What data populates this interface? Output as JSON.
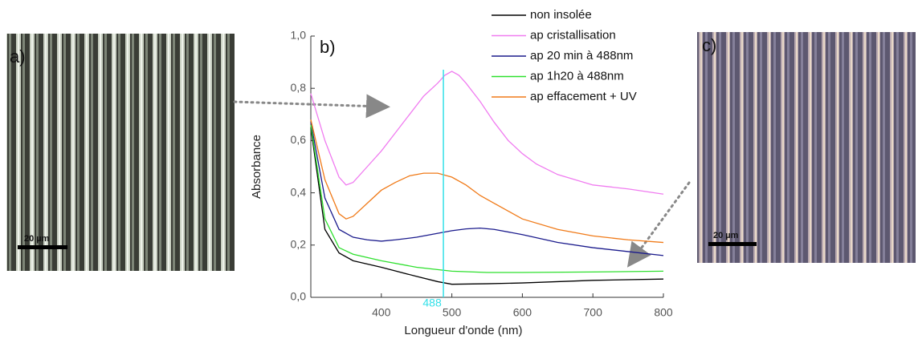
{
  "chart_data": {
    "type": "line",
    "x_label": "Longueur d'onde (nm)",
    "y_label": "Absorbance",
    "xlim": [
      300,
      800
    ],
    "xticks": [
      400,
      500,
      600,
      700,
      800
    ],
    "ylim": [
      0,
      1.0
    ],
    "yticks": [
      {
        "value": 0,
        "label": "0,0"
      },
      {
        "value": 0.2,
        "label": "0,2"
      },
      {
        "value": 0.4,
        "label": "0,4"
      },
      {
        "value": 0.6,
        "label": "0,6"
      },
      {
        "value": 0.8,
        "label": "0,8"
      },
      {
        "value": 1.0,
        "label": "1,0"
      }
    ],
    "vline": 488,
    "vline_color": "#33e0e8",
    "panel_labels": [
      "a)",
      "b)",
      "c)"
    ],
    "scale_label": "20 µm",
    "series": [
      {
        "name": "non insolée",
        "color": "#000000",
        "x": [
          300,
          320,
          340,
          360,
          400,
          450,
          480,
          500,
          550,
          600,
          700,
          800
        ],
        "values": [
          0.65,
          0.26,
          0.17,
          0.14,
          0.115,
          0.08,
          0.06,
          0.05,
          0.052,
          0.055,
          0.065,
          0.07
        ]
      },
      {
        "name": "ap cristallisation",
        "color": "#f07cf0",
        "x": [
          300,
          320,
          340,
          350,
          360,
          380,
          400,
          420,
          440,
          460,
          480,
          490,
          500,
          510,
          520,
          540,
          560,
          580,
          600,
          620,
          650,
          700,
          750,
          800
        ],
        "values": [
          0.78,
          0.6,
          0.46,
          0.43,
          0.44,
          0.5,
          0.56,
          0.63,
          0.7,
          0.77,
          0.82,
          0.85,
          0.865,
          0.85,
          0.82,
          0.75,
          0.67,
          0.6,
          0.55,
          0.51,
          0.47,
          0.43,
          0.415,
          0.395
        ]
      },
      {
        "name": "ap 20 min à 488nm",
        "color": "#1a1a8c",
        "x": [
          300,
          320,
          340,
          360,
          380,
          400,
          420,
          450,
          480,
          500,
          520,
          540,
          560,
          600,
          650,
          700,
          750,
          800
        ],
        "values": [
          0.67,
          0.38,
          0.26,
          0.23,
          0.22,
          0.215,
          0.22,
          0.23,
          0.245,
          0.255,
          0.262,
          0.265,
          0.26,
          0.24,
          0.21,
          0.19,
          0.175,
          0.16
        ]
      },
      {
        "name": "ap 1h20 à 488nm",
        "color": "#2ee02e",
        "x": [
          300,
          320,
          340,
          360,
          400,
          450,
          500,
          550,
          600,
          700,
          800
        ],
        "values": [
          0.66,
          0.3,
          0.19,
          0.165,
          0.14,
          0.115,
          0.1,
          0.095,
          0.095,
          0.097,
          0.1
        ]
      },
      {
        "name": "ap effacement + UV",
        "color": "#f07a18",
        "x": [
          300,
          320,
          340,
          350,
          360,
          380,
          400,
          420,
          440,
          460,
          480,
          500,
          520,
          540,
          560,
          580,
          600,
          650,
          700,
          750,
          800
        ],
        "values": [
          0.68,
          0.45,
          0.32,
          0.3,
          0.31,
          0.36,
          0.41,
          0.44,
          0.465,
          0.475,
          0.475,
          0.46,
          0.43,
          0.39,
          0.36,
          0.33,
          0.3,
          0.26,
          0.235,
          0.22,
          0.21
        ]
      }
    ]
  }
}
